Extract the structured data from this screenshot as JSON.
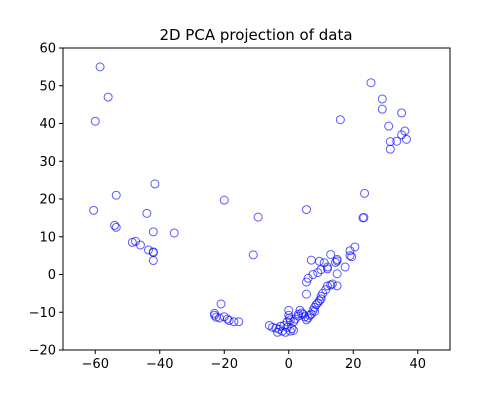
{
  "chart_data": {
    "type": "scatter",
    "title": "2D PCA projection of data",
    "xlabel": "",
    "ylabel": "",
    "xlim": [
      -70,
      50
    ],
    "ylim": [
      -20,
      60
    ],
    "xticks": [
      -60,
      -40,
      -20,
      0,
      20,
      40
    ],
    "yticks": [
      -20,
      -10,
      0,
      10,
      20,
      30,
      40,
      50,
      60
    ],
    "grid": false,
    "marker": "hollow-circle",
    "marker_color": "#0000ff",
    "series": [
      {
        "points": [
          [
            -58.5,
            55
          ],
          [
            -56,
            47
          ],
          [
            -60,
            40.6
          ],
          [
            -60.5,
            17
          ],
          [
            -53.5,
            21
          ],
          [
            -54,
            13
          ],
          [
            -53.5,
            12.5
          ],
          [
            -44,
            16.2
          ],
          [
            -41.5,
            24
          ],
          [
            -42,
            11.3
          ],
          [
            -35.5,
            11
          ],
          [
            -48.5,
            8.5
          ],
          [
            -47.5,
            8.8
          ],
          [
            -46,
            7.8
          ],
          [
            -43.5,
            6.5
          ],
          [
            -42,
            6
          ],
          [
            -42,
            5.8
          ],
          [
            -42,
            3.7
          ],
          [
            -20,
            19.7
          ],
          [
            -9.5,
            15.2
          ],
          [
            -11,
            5.2
          ],
          [
            5.5,
            17.2
          ],
          [
            25.5,
            50.8
          ],
          [
            29,
            46.5
          ],
          [
            29,
            43.8
          ],
          [
            35,
            42.8
          ],
          [
            16,
            41
          ],
          [
            31,
            39.3
          ],
          [
            36,
            38
          ],
          [
            35,
            37
          ],
          [
            33.5,
            35.3
          ],
          [
            31.5,
            35.2
          ],
          [
            36.5,
            35.8
          ],
          [
            31.5,
            33.2
          ],
          [
            23.5,
            21.5
          ],
          [
            23,
            15
          ],
          [
            23.3,
            15.1
          ],
          [
            20.5,
            7.3
          ],
          [
            19,
            6.3
          ],
          [
            19,
            5
          ],
          [
            19.5,
            4.7
          ],
          [
            17.5,
            2
          ],
          [
            15,
            4
          ],
          [
            15,
            3.6
          ],
          [
            14.5,
            3.2
          ],
          [
            13,
            5.3
          ],
          [
            11,
            3.1
          ],
          [
            12,
            2
          ],
          [
            12,
            1.5
          ],
          [
            10,
            1.3
          ],
          [
            9.5,
            3.5
          ],
          [
            7,
            3.8
          ],
          [
            9,
            0.5
          ],
          [
            7.5,
            0
          ],
          [
            6,
            -1
          ],
          [
            5.5,
            -2
          ],
          [
            5.5,
            -5.2
          ],
          [
            15,
            0.2
          ],
          [
            15,
            -3
          ],
          [
            13.5,
            -2.5
          ],
          [
            13,
            -2.8
          ],
          [
            12,
            -3
          ],
          [
            11.5,
            -4
          ],
          [
            10.5,
            -5
          ],
          [
            10,
            -5.8
          ],
          [
            10,
            -6.5
          ],
          [
            9.5,
            -7
          ],
          [
            9,
            -7.5
          ],
          [
            8.5,
            -8
          ],
          [
            8,
            -8.7
          ],
          [
            8,
            -9.8
          ],
          [
            7.5,
            -9.5
          ],
          [
            7,
            -10.5
          ],
          [
            6.5,
            -10.8
          ],
          [
            6,
            -11.5
          ],
          [
            5.5,
            -12
          ],
          [
            5,
            -11.2
          ],
          [
            4.5,
            -10.5
          ],
          [
            4,
            -10.2
          ],
          [
            3.5,
            -9.5
          ],
          [
            3,
            -10.5
          ],
          [
            3,
            -11
          ],
          [
            2,
            -11.8
          ],
          [
            1.5,
            -12.5
          ],
          [
            0,
            -9.5
          ],
          [
            0,
            -10.8
          ],
          [
            0.2,
            -11.5
          ],
          [
            0.5,
            -12
          ],
          [
            -0.5,
            -12.5
          ],
          [
            -0.5,
            -14
          ],
          [
            1,
            -14.3
          ],
          [
            1.5,
            -14.8
          ],
          [
            0.5,
            -15
          ],
          [
            -1,
            -15.3
          ],
          [
            -2,
            -15
          ],
          [
            -3,
            -14.5
          ],
          [
            -4,
            -14.2
          ],
          [
            -5,
            -14
          ],
          [
            -6,
            -13.5
          ],
          [
            -3.5,
            -15.3
          ],
          [
            -2.5,
            -13.7
          ],
          [
            -1.5,
            -13.5
          ],
          [
            -21,
            -7.8
          ],
          [
            -23,
            -10.3
          ],
          [
            -23,
            -10.8
          ],
          [
            -22.5,
            -11.3
          ],
          [
            -21.5,
            -11.5
          ],
          [
            -20,
            -11.2
          ],
          [
            -19,
            -11.8
          ],
          [
            -18.5,
            -12.2
          ],
          [
            -17,
            -12.5
          ],
          [
            -15.5,
            -12.5
          ]
        ]
      }
    ]
  }
}
